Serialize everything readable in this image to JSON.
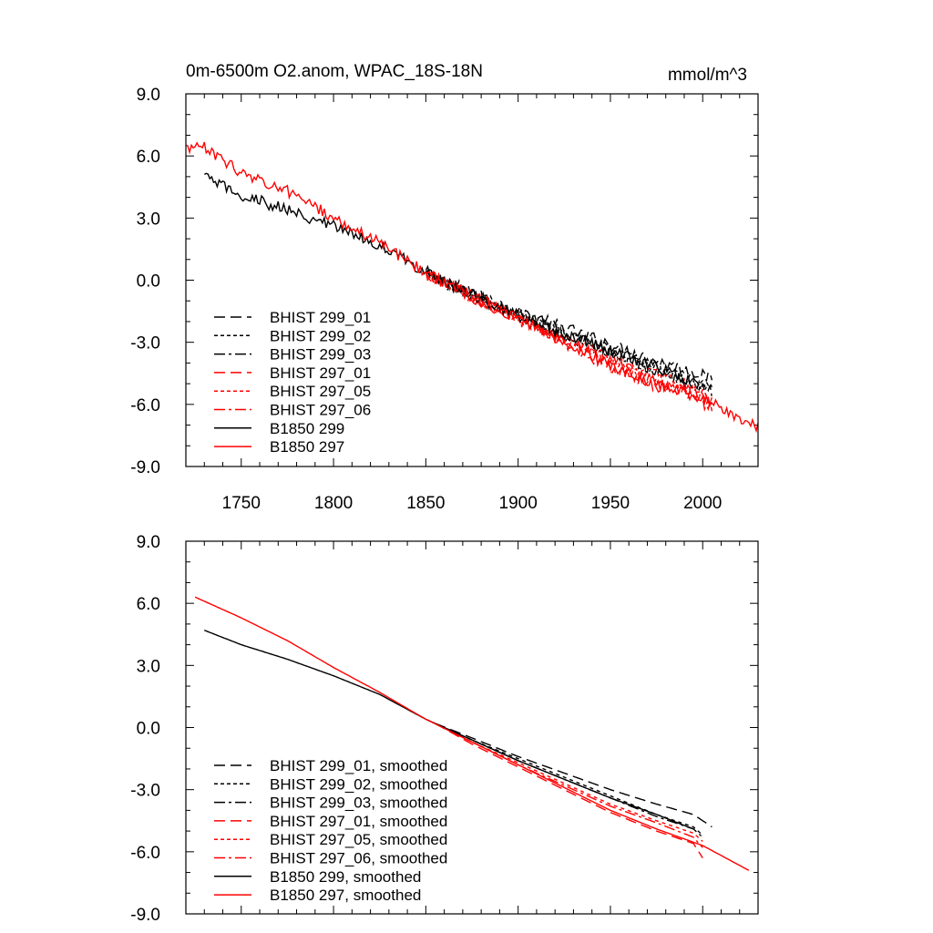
{
  "chart_data": [
    {
      "type": "line",
      "title": "0m-6500m O2.anom, WPAC_18S-18N",
      "units": "mmol/m^3",
      "xlim": [
        1720,
        2030
      ],
      "ylim": [
        -9,
        9
      ],
      "x_ticks": [
        1750,
        1800,
        1850,
        1900,
        1950,
        2000
      ],
      "y_ticks": [
        "9.0",
        "6.0",
        "3.0",
        "0.0",
        "-3.0",
        "-6.0",
        "-9.0"
      ],
      "grid": false,
      "legend_position": "lower-left",
      "series": [
        {
          "name": "BHIST 299_01",
          "color": "#000000",
          "dash": "dashed",
          "noisy": true,
          "points": [
            [
              1850,
              0.4
            ],
            [
              1875,
              -0.6
            ],
            [
              1900,
              -1.5
            ],
            [
              1925,
              -2.3
            ],
            [
              1950,
              -3.1
            ],
            [
              1975,
              -3.9
            ],
            [
              1995,
              -4.4
            ],
            [
              2005,
              -4.8
            ]
          ]
        },
        {
          "name": "BHIST 299_02",
          "color": "#000000",
          "dash": "dotted",
          "noisy": true,
          "points": [
            [
              1850,
              0.3
            ],
            [
              1875,
              -0.7
            ],
            [
              1900,
              -1.6
            ],
            [
              1925,
              -2.5
            ],
            [
              1950,
              -3.4
            ],
            [
              1975,
              -4.3
            ],
            [
              1995,
              -4.9
            ],
            [
              2005,
              -5.3
            ]
          ]
        },
        {
          "name": "BHIST 299_03",
          "color": "#000000",
          "dash": "dashdot",
          "noisy": true,
          "points": [
            [
              1850,
              0.3
            ],
            [
              1875,
              -0.7
            ],
            [
              1900,
              -1.7
            ],
            [
              1925,
              -2.6
            ],
            [
              1950,
              -3.5
            ],
            [
              1975,
              -4.4
            ],
            [
              1995,
              -5.0
            ],
            [
              2005,
              -5.4
            ]
          ]
        },
        {
          "name": "BHIST 297_01",
          "color": "#ff0000",
          "dash": "dashed",
          "noisy": true,
          "points": [
            [
              1850,
              0.3
            ],
            [
              1875,
              -0.8
            ],
            [
              1900,
              -1.9
            ],
            [
              1925,
              -3.0
            ],
            [
              1950,
              -4.2
            ],
            [
              1975,
              -5.1
            ],
            [
              1995,
              -5.6
            ],
            [
              2005,
              -6.2
            ]
          ]
        },
        {
          "name": "BHIST 297_05",
          "color": "#ff0000",
          "dash": "dotted",
          "noisy": true,
          "points": [
            [
              1850,
              0.3
            ],
            [
              1875,
              -0.8
            ],
            [
              1900,
              -1.8
            ],
            [
              1925,
              -2.8
            ],
            [
              1950,
              -3.8
            ],
            [
              1975,
              -4.6
            ],
            [
              1995,
              -5.2
            ],
            [
              2005,
              -5.7
            ]
          ]
        },
        {
          "name": "BHIST 297_06",
          "color": "#ff0000",
          "dash": "dashdot",
          "noisy": true,
          "points": [
            [
              1850,
              0.3
            ],
            [
              1875,
              -0.8
            ],
            [
              1900,
              -1.8
            ],
            [
              1925,
              -2.9
            ],
            [
              1950,
              -3.9
            ],
            [
              1975,
              -4.8
            ],
            [
              1995,
              -5.4
            ],
            [
              2005,
              -5.9
            ]
          ]
        },
        {
          "name": "B1850 299",
          "color": "#000000",
          "dash": "solid",
          "noisy": true,
          "points": [
            [
              1730,
              5.0
            ],
            [
              1750,
              4.1
            ],
            [
              1775,
              3.4
            ],
            [
              1800,
              2.6
            ],
            [
              1825,
              1.7
            ],
            [
              1850,
              0.4
            ],
            [
              1875,
              -0.7
            ],
            [
              1900,
              -1.7
            ],
            [
              1925,
              -2.6
            ],
            [
              1950,
              -3.4
            ],
            [
              1975,
              -4.2
            ],
            [
              1998,
              -5.0
            ]
          ]
        },
        {
          "name": "B1850 297",
          "color": "#ff0000",
          "dash": "solid",
          "noisy": true,
          "points": [
            [
              1720,
              6.4
            ],
            [
              1730,
              6.4
            ],
            [
              1750,
              5.2
            ],
            [
              1775,
              4.3
            ],
            [
              1800,
              3.0
            ],
            [
              1825,
              1.8
            ],
            [
              1850,
              0.4
            ],
            [
              1875,
              -0.8
            ],
            [
              1900,
              -1.9
            ],
            [
              1925,
              -3.0
            ],
            [
              1950,
              -4.1
            ],
            [
              1975,
              -5.0
            ],
            [
              2000,
              -5.7
            ],
            [
              2025,
              -7.0
            ],
            [
              2030,
              -7.0
            ]
          ]
        }
      ]
    },
    {
      "type": "line",
      "title": "",
      "xlim": [
        1720,
        2030
      ],
      "ylim": [
        -9,
        9
      ],
      "x_ticks": [],
      "y_ticks": [
        "9.0",
        "6.0",
        "3.0",
        "0.0",
        "-3.0",
        "-6.0",
        "-9.0"
      ],
      "grid": false,
      "legend_position": "lower-left",
      "series": [
        {
          "name": "BHIST 299_01, smoothed",
          "color": "#000000",
          "dash": "dashed",
          "noisy": false,
          "points": [
            [
              1855,
              0.2
            ],
            [
              1875,
              -0.5
            ],
            [
              1900,
              -1.4
            ],
            [
              1925,
              -2.2
            ],
            [
              1950,
              -3.0
            ],
            [
              1975,
              -3.7
            ],
            [
              1995,
              -4.2
            ],
            [
              2005,
              -4.8
            ]
          ]
        },
        {
          "name": "BHIST 299_02, smoothed",
          "color": "#000000",
          "dash": "dotted",
          "noisy": false,
          "points": [
            [
              1855,
              0.2
            ],
            [
              1875,
              -0.6
            ],
            [
              1900,
              -1.5
            ],
            [
              1925,
              -2.4
            ],
            [
              1950,
              -3.3
            ],
            [
              1975,
              -4.2
            ],
            [
              1995,
              -4.8
            ],
            [
              2000,
              -5.2
            ]
          ]
        },
        {
          "name": "BHIST 299_03, smoothed",
          "color": "#000000",
          "dash": "dashdot",
          "noisy": false,
          "points": [
            [
              1855,
              0.2
            ],
            [
              1875,
              -0.6
            ],
            [
              1900,
              -1.6
            ],
            [
              1925,
              -2.5
            ],
            [
              1950,
              -3.4
            ],
            [
              1975,
              -4.3
            ],
            [
              1995,
              -4.9
            ],
            [
              2000,
              -5.3
            ]
          ]
        },
        {
          "name": "BHIST 297_01, smoothed",
          "color": "#ff0000",
          "dash": "dashed",
          "noisy": false,
          "points": [
            [
              1855,
              0.2
            ],
            [
              1875,
              -0.8
            ],
            [
              1900,
              -1.9
            ],
            [
              1925,
              -3.0
            ],
            [
              1950,
              -4.1
            ],
            [
              1975,
              -5.0
            ],
            [
              1995,
              -5.6
            ],
            [
              2000,
              -6.3
            ]
          ]
        },
        {
          "name": "BHIST 297_05, smoothed",
          "color": "#ff0000",
          "dash": "dotted",
          "noisy": false,
          "points": [
            [
              1855,
              0.2
            ],
            [
              1875,
              -0.7
            ],
            [
              1900,
              -1.7
            ],
            [
              1925,
              -2.7
            ],
            [
              1950,
              -3.7
            ],
            [
              1975,
              -4.5
            ],
            [
              1995,
              -5.1
            ],
            [
              2000,
              -5.5
            ]
          ]
        },
        {
          "name": "BHIST 297_06, smoothed",
          "color": "#ff0000",
          "dash": "dashdot",
          "noisy": false,
          "points": [
            [
              1855,
              0.2
            ],
            [
              1875,
              -0.7
            ],
            [
              1900,
              -1.8
            ],
            [
              1925,
              -2.8
            ],
            [
              1950,
              -3.8
            ],
            [
              1975,
              -4.6
            ],
            [
              1995,
              -5.3
            ],
            [
              2000,
              -5.8
            ]
          ]
        },
        {
          "name": "B1850 299, smoothed",
          "color": "#000000",
          "dash": "solid",
          "noisy": false,
          "points": [
            [
              1730,
              4.7
            ],
            [
              1750,
              4.0
            ],
            [
              1775,
              3.3
            ],
            [
              1800,
              2.5
            ],
            [
              1825,
              1.6
            ],
            [
              1850,
              0.4
            ],
            [
              1875,
              -0.6
            ],
            [
              1900,
              -1.6
            ],
            [
              1925,
              -2.5
            ],
            [
              1950,
              -3.4
            ],
            [
              1975,
              -4.2
            ],
            [
              1995,
              -4.9
            ]
          ]
        },
        {
          "name": "B1850 297, smoothed",
          "color": "#ff0000",
          "dash": "solid",
          "noisy": false,
          "points": [
            [
              1725,
              6.3
            ],
            [
              1750,
              5.3
            ],
            [
              1775,
              4.2
            ],
            [
              1800,
              2.9
            ],
            [
              1825,
              1.7
            ],
            [
              1850,
              0.4
            ],
            [
              1875,
              -0.7
            ],
            [
              1900,
              -1.8
            ],
            [
              1925,
              -2.9
            ],
            [
              1950,
              -4.0
            ],
            [
              1975,
              -4.9
            ],
            [
              2000,
              -5.7
            ],
            [
              2025,
              -6.9
            ]
          ]
        }
      ]
    }
  ]
}
